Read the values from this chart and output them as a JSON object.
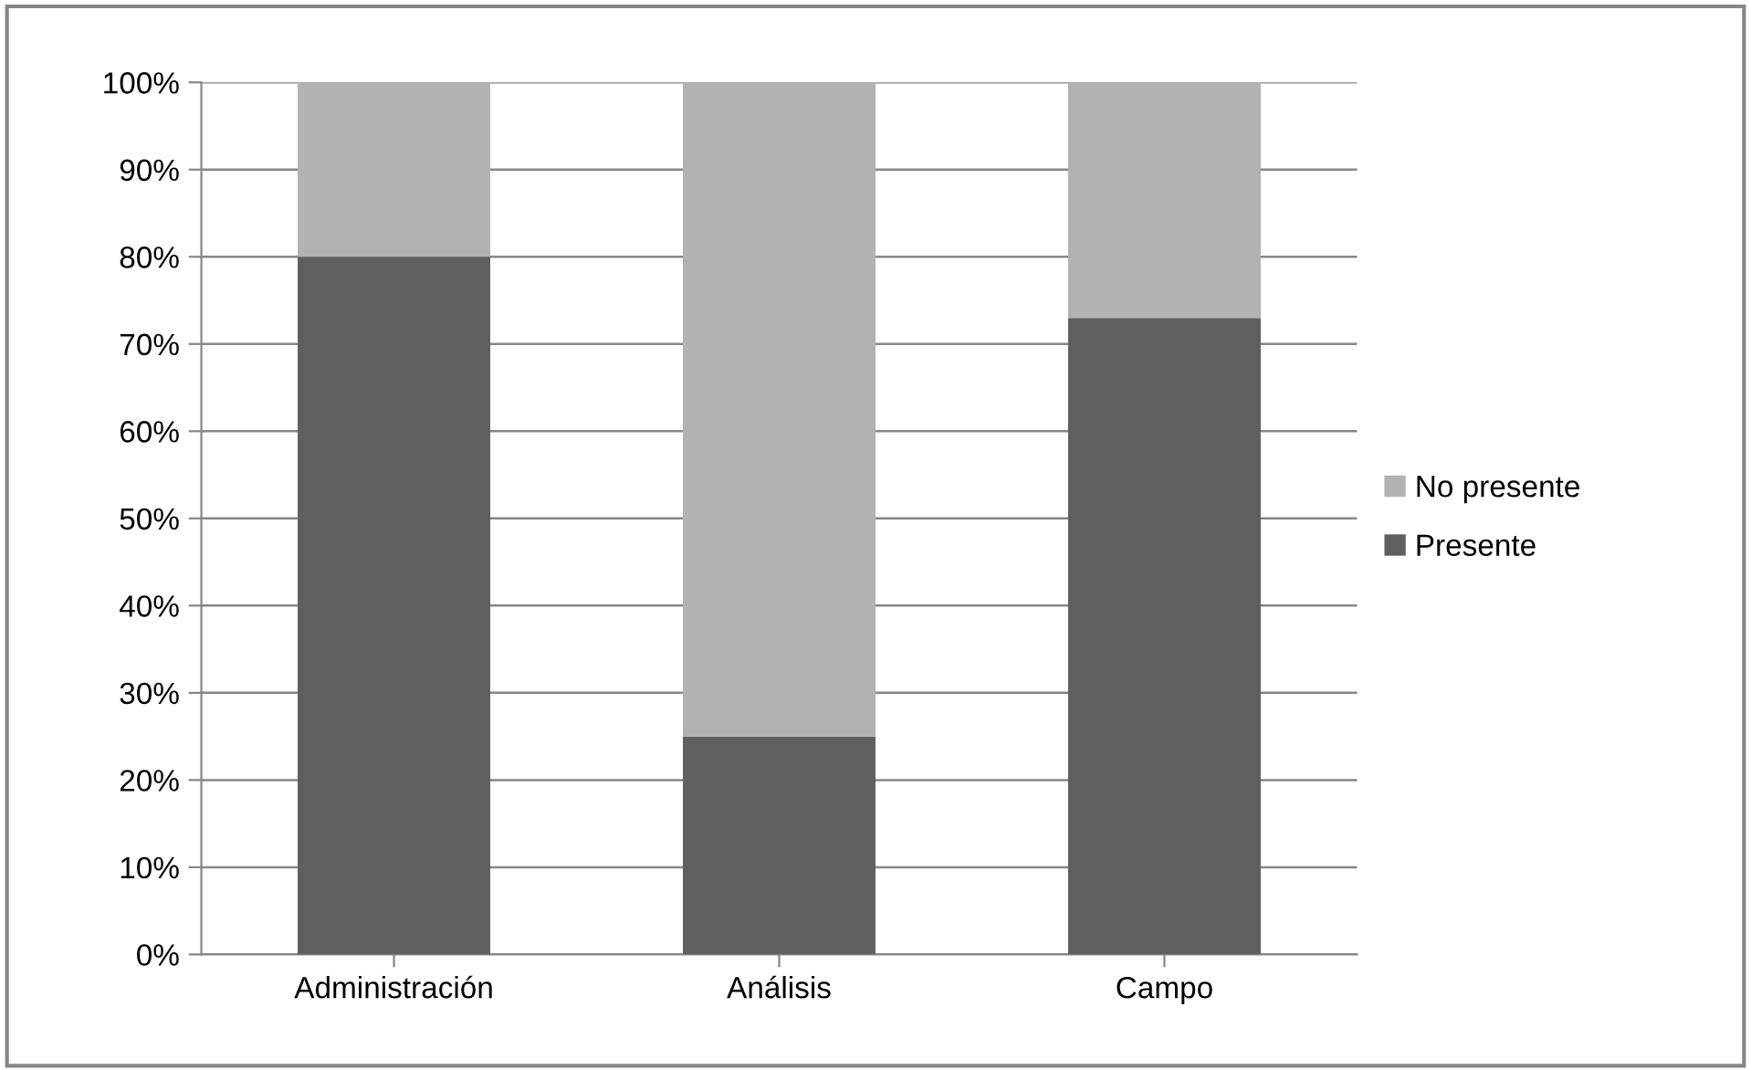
{
  "chart_data": {
    "type": "bar",
    "stacked": true,
    "categories": [
      "Administración",
      "Análisis",
      "Campo"
    ],
    "series": [
      {
        "name": "Presente",
        "color": "#5f5f5f",
        "values": [
          80,
          25,
          73
        ]
      },
      {
        "name": "No presente",
        "color": "#b2b2b2",
        "values": [
          20,
          75,
          27
        ]
      }
    ],
    "ylim": [
      0,
      100
    ],
    "yticks": [
      {
        "value": 0,
        "label": "0%"
      },
      {
        "value": 10,
        "label": "10%"
      },
      {
        "value": 20,
        "label": "20%"
      },
      {
        "value": 30,
        "label": "30%"
      },
      {
        "value": 40,
        "label": "40%"
      },
      {
        "value": 50,
        "label": "50%"
      },
      {
        "value": 60,
        "label": "60%"
      },
      {
        "value": 70,
        "label": "70%"
      },
      {
        "value": 80,
        "label": "80%"
      },
      {
        "value": 90,
        "label": "90%"
      },
      {
        "value": 100,
        "label": "100%"
      }
    ],
    "grid": "y",
    "legend": "right"
  }
}
